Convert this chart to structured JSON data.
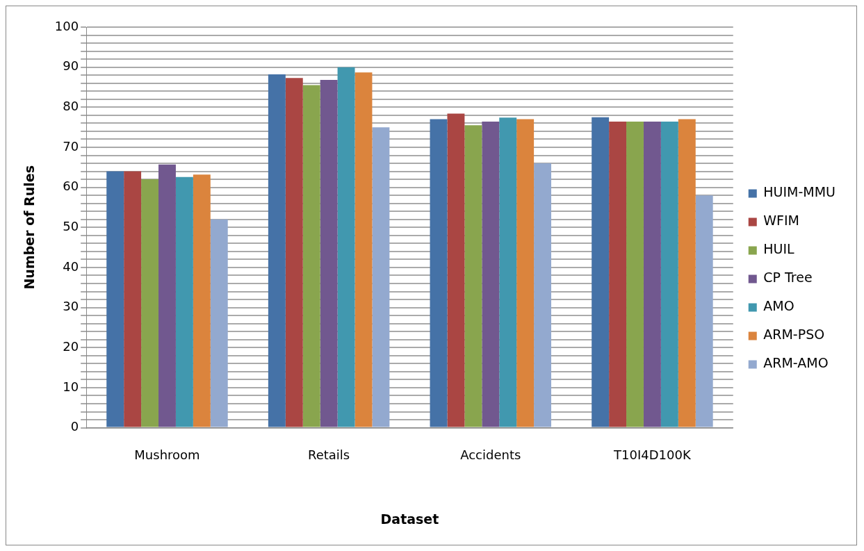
{
  "chart_data": {
    "type": "bar",
    "xlabel": "Dataset",
    "ylabel": "Number of Rules",
    "categories": [
      "Mushroom",
      "Retails",
      "Accidents",
      "T10I4D100K"
    ],
    "series": [
      {
        "name": "HUIM-MMU",
        "color": "#4572a7",
        "values": [
          64,
          88.2,
          77,
          77.5
        ]
      },
      {
        "name": "WFIM",
        "color": "#aa4643",
        "values": [
          64,
          87.3,
          78.4,
          76.4
        ]
      },
      {
        "name": "HUIL",
        "color": "#89a54e",
        "values": [
          62,
          85.5,
          75.5,
          76.4
        ]
      },
      {
        "name": "CP Tree",
        "color": "#71588f",
        "values": [
          65.7,
          86.8,
          76.4,
          76.4
        ]
      },
      {
        "name": "AMO",
        "color": "#4198af",
        "values": [
          62.6,
          90,
          77.4,
          76.4
        ]
      },
      {
        "name": "ARM-PSO",
        "color": "#db843d",
        "values": [
          63.2,
          88.7,
          77,
          77
        ]
      },
      {
        "name": "ARM-AMO",
        "color": "#93a9cf",
        "values": [
          52,
          75,
          66,
          58
        ]
      }
    ],
    "ylim": [
      0,
      100
    ],
    "yticks": [
      0,
      {
        "value": 2,
        "label": null
      },
      {
        "value": 4,
        "label": null
      },
      {
        "value": 6,
        "label": null
      },
      {
        "value": 8,
        "label": null
      },
      10,
      {
        "value": 12,
        "label": null
      },
      {
        "value": 14,
        "label": null
      },
      {
        "value": 16,
        "label": null
      },
      {
        "value": 18,
        "label": null
      },
      20,
      {
        "value": 22,
        "label": null
      },
      {
        "value": 24,
        "label": null
      },
      {
        "value": 26,
        "label": null
      },
      {
        "value": 28,
        "label": null
      },
      30,
      {
        "value": 32,
        "label": null
      },
      {
        "value": 34,
        "label": null
      },
      {
        "value": 36,
        "label": null
      },
      {
        "value": 38,
        "label": null
      },
      40,
      {
        "value": 42,
        "label": null
      },
      {
        "value": 44,
        "label": null
      },
      {
        "value": 46,
        "label": null
      },
      {
        "value": 48,
        "label": null
      },
      50,
      {
        "value": 52,
        "label": null
      },
      {
        "value": 54,
        "label": null
      },
      {
        "value": 56,
        "label": null
      },
      {
        "value": 58,
        "label": null
      },
      60,
      {
        "value": 62,
        "label": null
      },
      {
        "value": 64,
        "label": null
      },
      {
        "value": 66,
        "label": null
      },
      {
        "value": 68,
        "label": null
      },
      70,
      {
        "value": 72,
        "label": null
      },
      {
        "value": 74,
        "label": null
      },
      {
        "value": 76,
        "label": null
      },
      {
        "value": 78,
        "label": null
      },
      80,
      {
        "value": 82,
        "label": null
      },
      {
        "value": 84,
        "label": null
      },
      {
        "value": 86,
        "label": null
      },
      {
        "value": 88,
        "label": null
      },
      90,
      {
        "value": 92,
        "label": null
      },
      {
        "value": 94,
        "label": null
      },
      {
        "value": 96,
        "label": null
      },
      {
        "value": 98,
        "label": null
      },
      100
    ],
    "grid": "y",
    "legend": "right"
  }
}
